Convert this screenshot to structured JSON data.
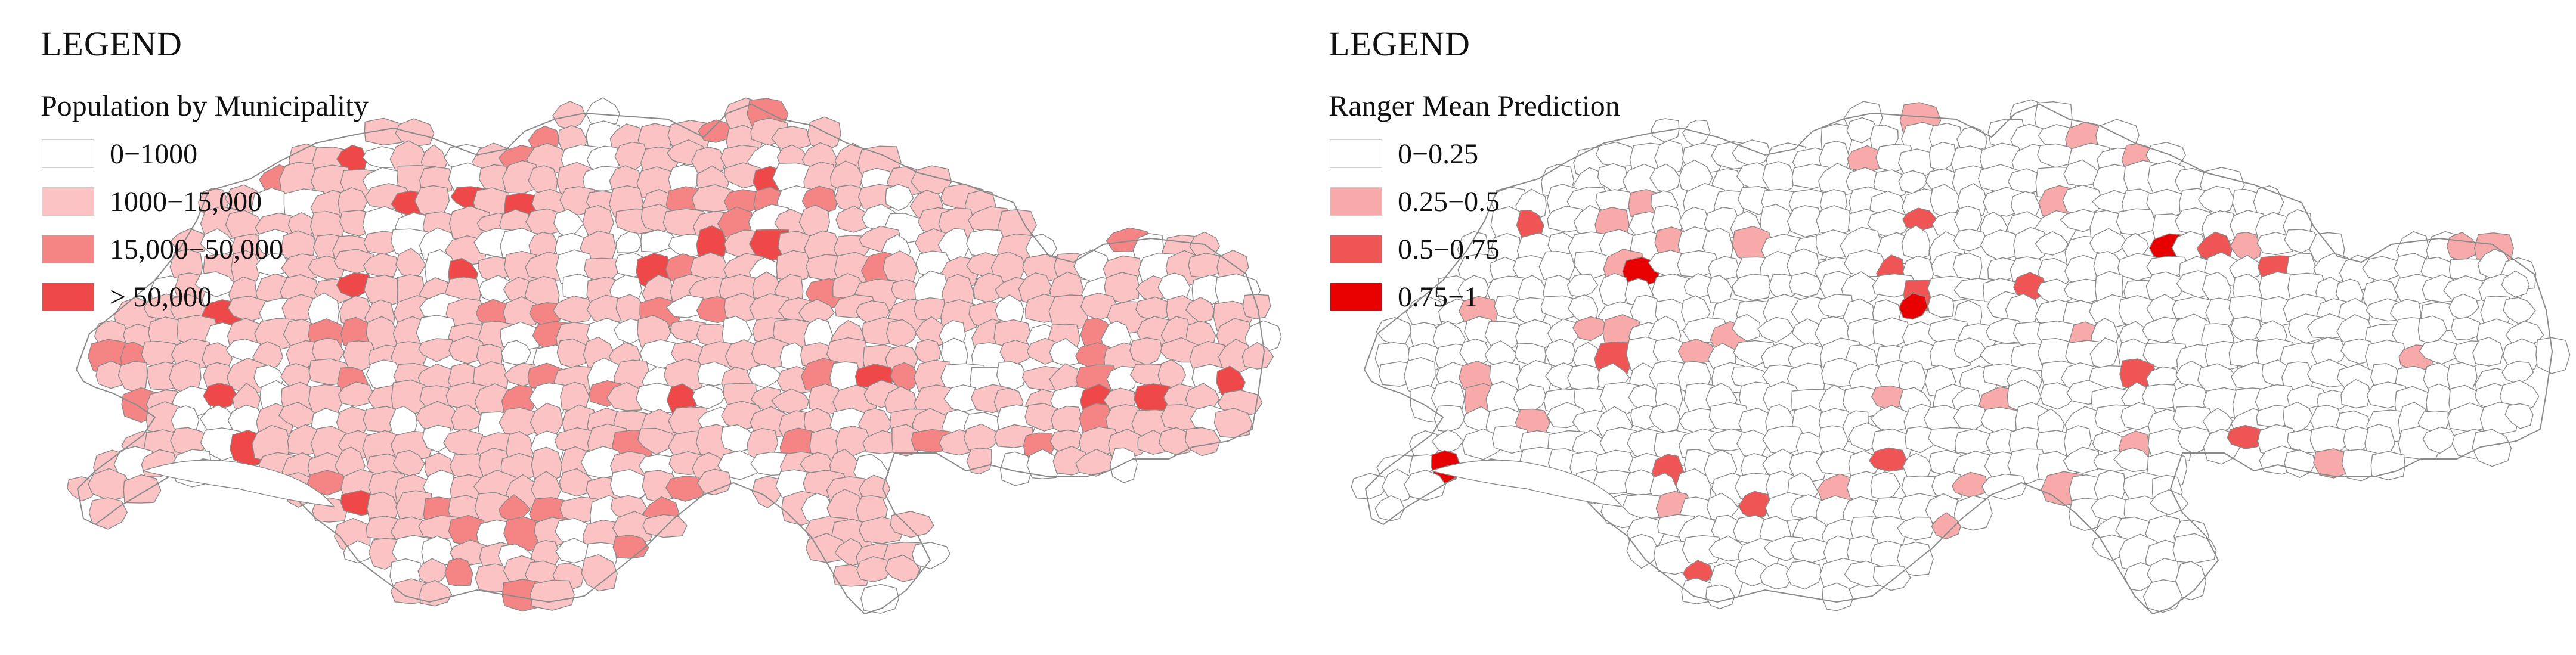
{
  "panels": [
    {
      "legend_heading": "LEGEND",
      "legend_title": "Population by Municipality",
      "classes": [
        {
          "label": "0−1000",
          "color": "#ffffff"
        },
        {
          "label": "1000−15,000",
          "color": "#fbc3c3"
        },
        {
          "label": "15,000−50,000",
          "color": "#f58585"
        },
        {
          "label": "> 50,000",
          "color": "#ef4848"
        }
      ]
    },
    {
      "legend_heading": "LEGEND",
      "legend_title": "Ranger Mean Prediction",
      "classes": [
        {
          "label": "0−0.25",
          "color": "#ffffff"
        },
        {
          "label": "0.25−0.5",
          "color": "#f8aaaa"
        },
        {
          "label": "0.5−0.75",
          "color": "#f05555"
        },
        {
          "label": "0.75−1",
          "color": "#e80000"
        }
      ]
    }
  ],
  "map": {
    "boundary_color": "#8a8a8a"
  }
}
